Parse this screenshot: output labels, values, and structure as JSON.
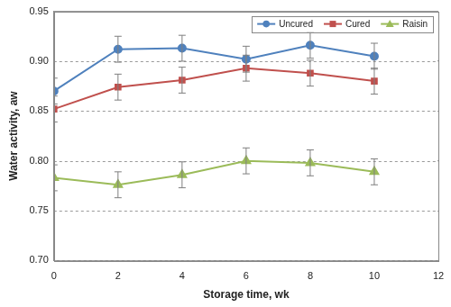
{
  "chart_data": {
    "type": "line",
    "x_label": "Storage time, wk",
    "y_label": "Water activity, aw",
    "xlim": [
      0,
      12
    ],
    "xticks": [
      0,
      2,
      4,
      6,
      8,
      10,
      12
    ],
    "ylim": [
      0.7,
      0.95
    ],
    "yticks": [
      {
        "value": 0.7,
        "label": "0.70"
      },
      {
        "value": 0.75,
        "label": "0.75"
      },
      {
        "value": 0.8,
        "label": "0.80"
      },
      {
        "value": 0.85,
        "label": "0.85"
      },
      {
        "value": 0.9,
        "label": "0.90"
      },
      {
        "value": 0.95,
        "label": "0.95"
      }
    ],
    "grid": true,
    "legend": "upper-right",
    "x": [
      0,
      2,
      4,
      6,
      8,
      10
    ],
    "series": [
      {
        "name": "Uncured",
        "color": "#4f81bd",
        "marker": "circle",
        "values": [
          0.87,
          0.912,
          0.913,
          0.902,
          0.916,
          0.905
        ],
        "errors": [
          0.013,
          0.013,
          0.013,
          0.013,
          0.013,
          0.013
        ]
      },
      {
        "name": "Cured",
        "color": "#c0504d",
        "marker": "square",
        "values": [
          0.852,
          0.874,
          0.881,
          0.893,
          0.888,
          0.88
        ],
        "errors": [
          0.013,
          0.013,
          0.013,
          0.013,
          0.013,
          0.013
        ]
      },
      {
        "name": "Raisin",
        "color": "#9bbb59",
        "marker": "triangle",
        "values": [
          0.783,
          0.776,
          0.786,
          0.8,
          0.798,
          0.789
        ],
        "errors": [
          0.013,
          0.013,
          0.013,
          0.013,
          0.013,
          0.013
        ]
      }
    ]
  }
}
